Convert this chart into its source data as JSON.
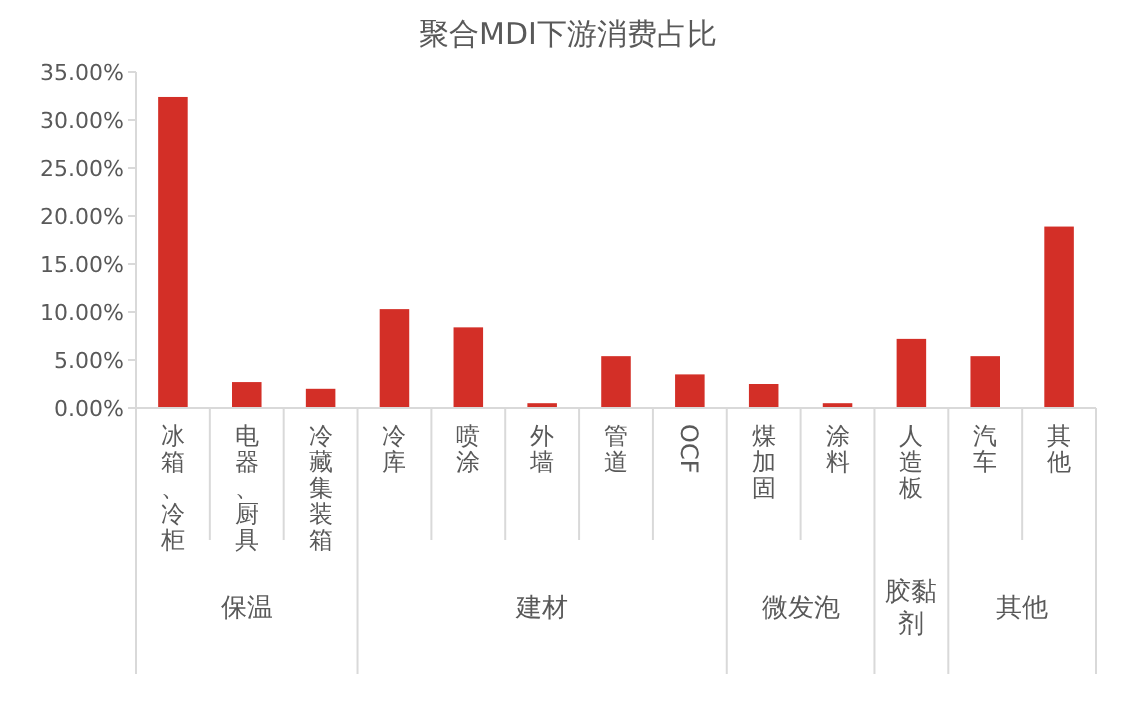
{
  "chart_data": {
    "type": "bar",
    "title": "聚合MDI下游消费占比",
    "categories": [
      "冰箱、冷柜",
      "电器、厨具",
      "冷藏集装箱",
      "冷库",
      "喷涂",
      "外墙",
      "管道",
      "OCF",
      "煤加固",
      "涂料",
      "人造板",
      "汽车",
      "其他"
    ],
    "values": [
      32.4,
      2.7,
      2.0,
      10.3,
      8.4,
      0.5,
      5.4,
      3.5,
      2.5,
      0.5,
      7.2,
      5.4,
      18.9
    ],
    "color": "#d32f27",
    "ylim": [
      0,
      35
    ],
    "yticks": [
      {
        "value": 0,
        "label": "0.00%"
      },
      {
        "value": 5,
        "label": "5.00%"
      },
      {
        "value": 10,
        "label": "10.00%"
      },
      {
        "value": 15,
        "label": "15.00%"
      },
      {
        "value": 20,
        "label": "20.00%"
      },
      {
        "value": 25,
        "label": "25.00%"
      },
      {
        "value": 30,
        "label": "30.00%"
      },
      {
        "value": 35,
        "label": "35.00%"
      }
    ],
    "grid": false,
    "annotations": [
      "保温",
      "建材",
      "微发泡",
      "胶黏剂",
      "其他"
    ]
  }
}
